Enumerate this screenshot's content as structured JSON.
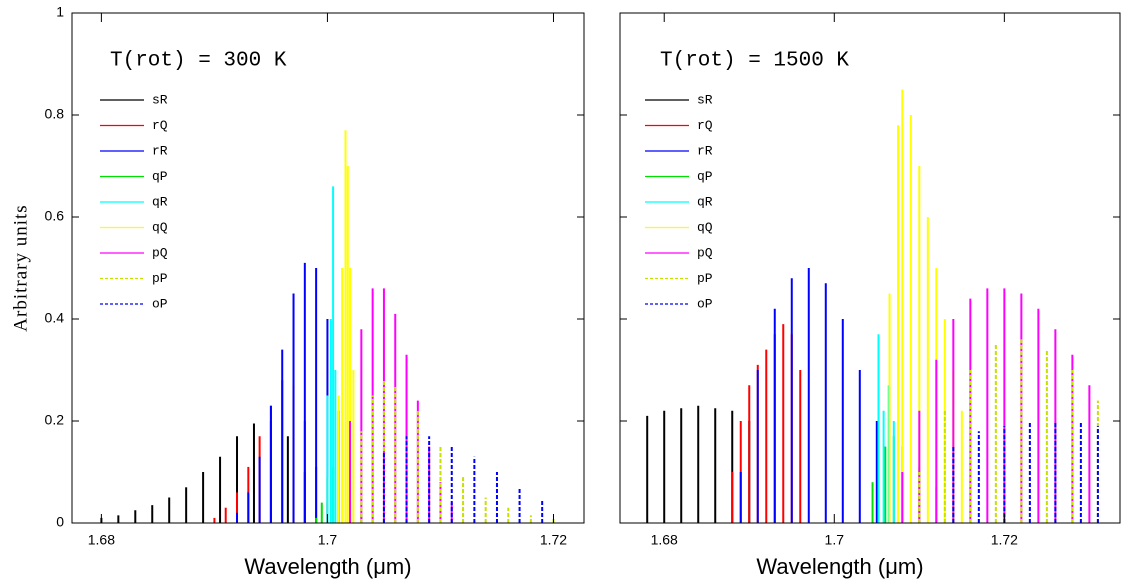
{
  "chart_data": [
    {
      "type": "stick",
      "annotation": "T(rot) = 300 K",
      "xlabel": "Wavelength (μm)",
      "ylabel": "Arbitrary units",
      "xlim": [
        1.6774,
        1.7227
      ],
      "ylim": [
        0,
        1
      ],
      "xticks": [
        1.68,
        1.7,
        1.72
      ],
      "yticks": [
        0,
        0.2,
        0.4,
        0.6,
        0.8,
        1
      ],
      "ytick_labels": true,
      "series": [
        {
          "name": "sR",
          "color": "#000000",
          "dashed": false,
          "x": [
            1.68,
            1.6815,
            1.683,
            1.6845,
            1.686,
            1.6875,
            1.689,
            1.6905,
            1.692,
            1.6935,
            1.695,
            1.6965,
            1.698
          ],
          "values": [
            0.01,
            0.015,
            0.025,
            0.035,
            0.05,
            0.07,
            0.1,
            0.13,
            0.17,
            0.195,
            0.2,
            0.17,
            0.1
          ]
        },
        {
          "name": "rQ",
          "color": "#ff0000",
          "dashed": false,
          "x": [
            1.69,
            1.691,
            1.692,
            1.693,
            1.694,
            1.695,
            1.696,
            1.697,
            1.698,
            1.699,
            1.7
          ],
          "values": [
            0.01,
            0.03,
            0.06,
            0.11,
            0.17,
            0.23,
            0.28,
            0.27,
            0.2,
            0.11,
            0.04
          ]
        },
        {
          "name": "rR",
          "color": "#0000ff",
          "dashed": false,
          "x": [
            1.692,
            1.693,
            1.694,
            1.695,
            1.696,
            1.697,
            1.698,
            1.699,
            1.7,
            1.701
          ],
          "values": [
            0.02,
            0.06,
            0.13,
            0.23,
            0.34,
            0.45,
            0.51,
            0.5,
            0.4,
            0.22
          ]
        },
        {
          "name": "qP",
          "color": "#00e000",
          "dashed": false,
          "x": [
            1.699,
            1.6995,
            1.7,
            1.7005,
            1.701,
            1.702,
            1.703,
            1.705
          ],
          "values": [
            0.01,
            0.04,
            0.09,
            0.11,
            0.07,
            0.04,
            0.02,
            0.01
          ]
        },
        {
          "name": "qR",
          "color": "#00ffff",
          "dashed": false,
          "x": [
            1.7,
            1.7003,
            1.7005,
            1.7007
          ],
          "values": [
            0.25,
            0.4,
            0.66,
            0.3
          ]
        },
        {
          "name": "qQ",
          "color": "#ffff00",
          "dashed": false,
          "x": [
            1.701,
            1.7013,
            1.7016,
            1.7018,
            1.702,
            1.7023
          ],
          "values": [
            0.25,
            0.5,
            0.77,
            0.7,
            0.5,
            0.3
          ]
        },
        {
          "name": "pQ",
          "color": "#ff00ff",
          "dashed": false,
          "x": [
            1.702,
            1.703,
            1.704,
            1.705,
            1.706,
            1.707,
            1.708,
            1.709,
            1.71,
            1.711
          ],
          "values": [
            0.2,
            0.38,
            0.46,
            0.46,
            0.41,
            0.33,
            0.24,
            0.15,
            0.08,
            0.04
          ]
        },
        {
          "name": "pP",
          "color": "#c8e000",
          "dashed": true,
          "x": [
            1.703,
            1.704,
            1.705,
            1.706,
            1.708,
            1.71,
            1.712,
            1.714,
            1.716,
            1.718,
            1.72
          ],
          "values": [
            0.18,
            0.25,
            0.28,
            0.27,
            0.22,
            0.15,
            0.09,
            0.05,
            0.03,
            0.015,
            0.01
          ]
        },
        {
          "name": "oP",
          "color": "#0000ff",
          "dashed": true,
          "x": [
            1.705,
            1.707,
            1.709,
            1.711,
            1.713,
            1.715,
            1.717,
            1.719
          ],
          "values": [
            0.14,
            0.17,
            0.17,
            0.15,
            0.13,
            0.1,
            0.07,
            0.045
          ]
        }
      ]
    },
    {
      "type": "stick",
      "annotation": "T(rot) = 1500 K",
      "xlabel": "Wavelength (μm)",
      "xlim": [
        1.6748,
        1.7336
      ],
      "ylim": [
        0,
        1
      ],
      "xticks": [
        1.68,
        1.7,
        1.72
      ],
      "yticks": [
        0,
        0.2,
        0.4,
        0.6,
        0.8,
        1
      ],
      "ytick_labels": false,
      "series": [
        {
          "name": "sR",
          "color": "#000000",
          "dashed": false,
          "x": [
            1.678,
            1.68,
            1.682,
            1.684,
            1.686,
            1.688,
            1.69
          ],
          "values": [
            0.21,
            0.22,
            0.225,
            0.23,
            0.225,
            0.22,
            0.2
          ]
        },
        {
          "name": "rQ",
          "color": "#ff0000",
          "dashed": false,
          "x": [
            1.688,
            1.689,
            1.69,
            1.691,
            1.692,
            1.693,
            1.694,
            1.695,
            1.696
          ],
          "values": [
            0.1,
            0.2,
            0.27,
            0.31,
            0.34,
            0.37,
            0.39,
            0.37,
            0.3
          ]
        },
        {
          "name": "rR",
          "color": "#0000ff",
          "dashed": false,
          "x": [
            1.689,
            1.691,
            1.693,
            1.695,
            1.697,
            1.699,
            1.701,
            1.703,
            1.705
          ],
          "values": [
            0.1,
            0.3,
            0.42,
            0.48,
            0.5,
            0.47,
            0.4,
            0.3,
            0.2
          ]
        },
        {
          "name": "qP",
          "color": "#00e000",
          "dashed": false,
          "x": [
            1.7045,
            1.706,
            1.707,
            1.708,
            1.71,
            1.712,
            1.714
          ],
          "values": [
            0.08,
            0.15,
            0.17,
            0.15,
            0.11,
            0.07,
            0.04
          ]
        },
        {
          "name": "qR",
          "color": "#00ffff",
          "dashed": false,
          "x": [
            1.7052,
            1.7058,
            1.7064,
            1.707
          ],
          "values": [
            0.37,
            0.22,
            0.27,
            0.2
          ]
        },
        {
          "name": "qQ",
          "color": "#ffff00",
          "dashed": false,
          "x": [
            1.7065,
            1.7075,
            1.708,
            1.709,
            1.71,
            1.711,
            1.712,
            1.713,
            1.714,
            1.715
          ],
          "values": [
            0.45,
            0.78,
            0.85,
            0.8,
            0.7,
            0.6,
            0.5,
            0.4,
            0.3,
            0.22
          ]
        },
        {
          "name": "pQ",
          "color": "#ff00ff",
          "dashed": false,
          "x": [
            1.708,
            1.71,
            1.712,
            1.714,
            1.716,
            1.718,
            1.72,
            1.722,
            1.724,
            1.726,
            1.728,
            1.73
          ],
          "values": [
            0.1,
            0.22,
            0.32,
            0.4,
            0.44,
            0.46,
            0.46,
            0.45,
            0.42,
            0.38,
            0.33,
            0.27
          ]
        },
        {
          "name": "pP",
          "color": "#c8e000",
          "dashed": true,
          "x": [
            1.71,
            1.713,
            1.716,
            1.719,
            1.722,
            1.725,
            1.728,
            1.731
          ],
          "values": [
            0.1,
            0.22,
            0.3,
            0.35,
            0.36,
            0.34,
            0.3,
            0.24
          ]
        },
        {
          "name": "oP",
          "color": "#0000ff",
          "dashed": true,
          "x": [
            1.714,
            1.717,
            1.72,
            1.723,
            1.726,
            1.729,
            1.731
          ],
          "values": [
            0.15,
            0.18,
            0.19,
            0.2,
            0.2,
            0.2,
            0.19
          ]
        }
      ]
    }
  ]
}
